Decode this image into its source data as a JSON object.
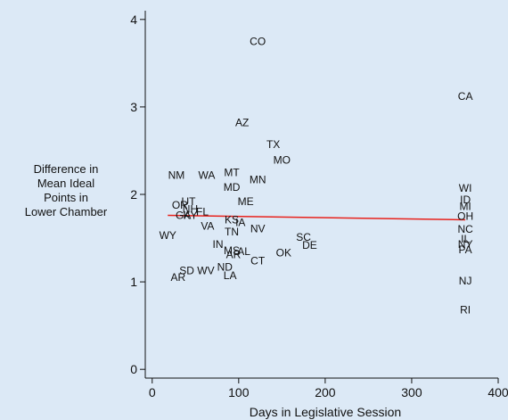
{
  "chart_data": {
    "type": "scatter",
    "title": "",
    "xlabel": "Days in Legislative Session",
    "ylabel_lines": [
      "Difference in",
      "Mean Ideal",
      "Points in",
      "Lower Chamber"
    ],
    "xlim": [
      -8,
      400
    ],
    "ylim": [
      -0.1,
      4.1
    ],
    "xticks": [
      0,
      100,
      200,
      300,
      400
    ],
    "yticks": [
      0,
      1,
      2,
      3,
      4
    ],
    "grid": false,
    "legend": "none",
    "colors": {
      "background": "#dce9f6",
      "fitline": "#e8221c",
      "text": "#111111"
    },
    "points": [
      {
        "label": "CO",
        "x": 122,
        "y": 3.75
      },
      {
        "label": "CA",
        "x": 362,
        "y": 3.12
      },
      {
        "label": "AZ",
        "x": 104,
        "y": 2.82
      },
      {
        "label": "TX",
        "x": 140,
        "y": 2.57
      },
      {
        "label": "MO",
        "x": 150,
        "y": 2.39
      },
      {
        "label": "NM",
        "x": 28,
        "y": 2.22
      },
      {
        "label": "WA",
        "x": 63,
        "y": 2.22
      },
      {
        "label": "MT",
        "x": 92,
        "y": 2.25
      },
      {
        "label": "MN",
        "x": 122,
        "y": 2.17
      },
      {
        "label": "MD",
        "x": 92,
        "y": 2.08
      },
      {
        "label": "WI",
        "x": 362,
        "y": 2.07
      },
      {
        "label": "ME",
        "x": 108,
        "y": 1.92
      },
      {
        "label": "UT",
        "x": 42,
        "y": 1.92
      },
      {
        "label": "ID",
        "x": 362,
        "y": 1.94
      },
      {
        "label": "OR",
        "x": 32,
        "y": 1.88
      },
      {
        "label": "NH",
        "x": 44,
        "y": 1.83
      },
      {
        "label": "FL",
        "x": 58,
        "y": 1.8
      },
      {
        "label": "MI",
        "x": 362,
        "y": 1.86
      },
      {
        "label": "GA",
        "x": 36,
        "y": 1.76
      },
      {
        "label": "KY",
        "x": 44,
        "y": 1.76
      },
      {
        "label": "OH",
        "x": 362,
        "y": 1.75
      },
      {
        "label": "KS",
        "x": 92,
        "y": 1.71
      },
      {
        "label": "IA",
        "x": 102,
        "y": 1.68
      },
      {
        "label": "VA",
        "x": 64,
        "y": 1.64
      },
      {
        "label": "NV",
        "x": 122,
        "y": 1.61
      },
      {
        "label": "NC",
        "x": 362,
        "y": 1.6
      },
      {
        "label": "TN",
        "x": 92,
        "y": 1.57
      },
      {
        "label": "WY",
        "x": 18,
        "y": 1.53
      },
      {
        "label": "SC",
        "x": 175,
        "y": 1.51
      },
      {
        "label": "IL",
        "x": 362,
        "y": 1.49
      },
      {
        "label": "DE",
        "x": 182,
        "y": 1.42
      },
      {
        "label": "NY",
        "x": 362,
        "y": 1.43
      },
      {
        "label": "IN",
        "x": 76,
        "y": 1.43
      },
      {
        "label": "PA",
        "x": 362,
        "y": 1.37
      },
      {
        "label": "MS",
        "x": 92,
        "y": 1.36
      },
      {
        "label": "AL",
        "x": 106,
        "y": 1.35
      },
      {
        "label": "AR",
        "x": 94,
        "y": 1.31
      },
      {
        "label": "OK",
        "x": 152,
        "y": 1.33
      },
      {
        "label": "CT",
        "x": 122,
        "y": 1.24
      },
      {
        "label": "ND",
        "x": 84,
        "y": 1.17
      },
      {
        "label": "SD",
        "x": 40,
        "y": 1.13
      },
      {
        "label": "WV",
        "x": 62,
        "y": 1.13
      },
      {
        "label": "AR",
        "x": 30,
        "y": 1.05
      },
      {
        "label": "LA",
        "x": 90,
        "y": 1.07
      },
      {
        "label": "NJ",
        "x": 362,
        "y": 1.01
      },
      {
        "label": "RI",
        "x": 362,
        "y": 0.68
      }
    ],
    "fit_line": {
      "x": [
        18,
        362
      ],
      "y": [
        1.76,
        1.71
      ]
    }
  }
}
